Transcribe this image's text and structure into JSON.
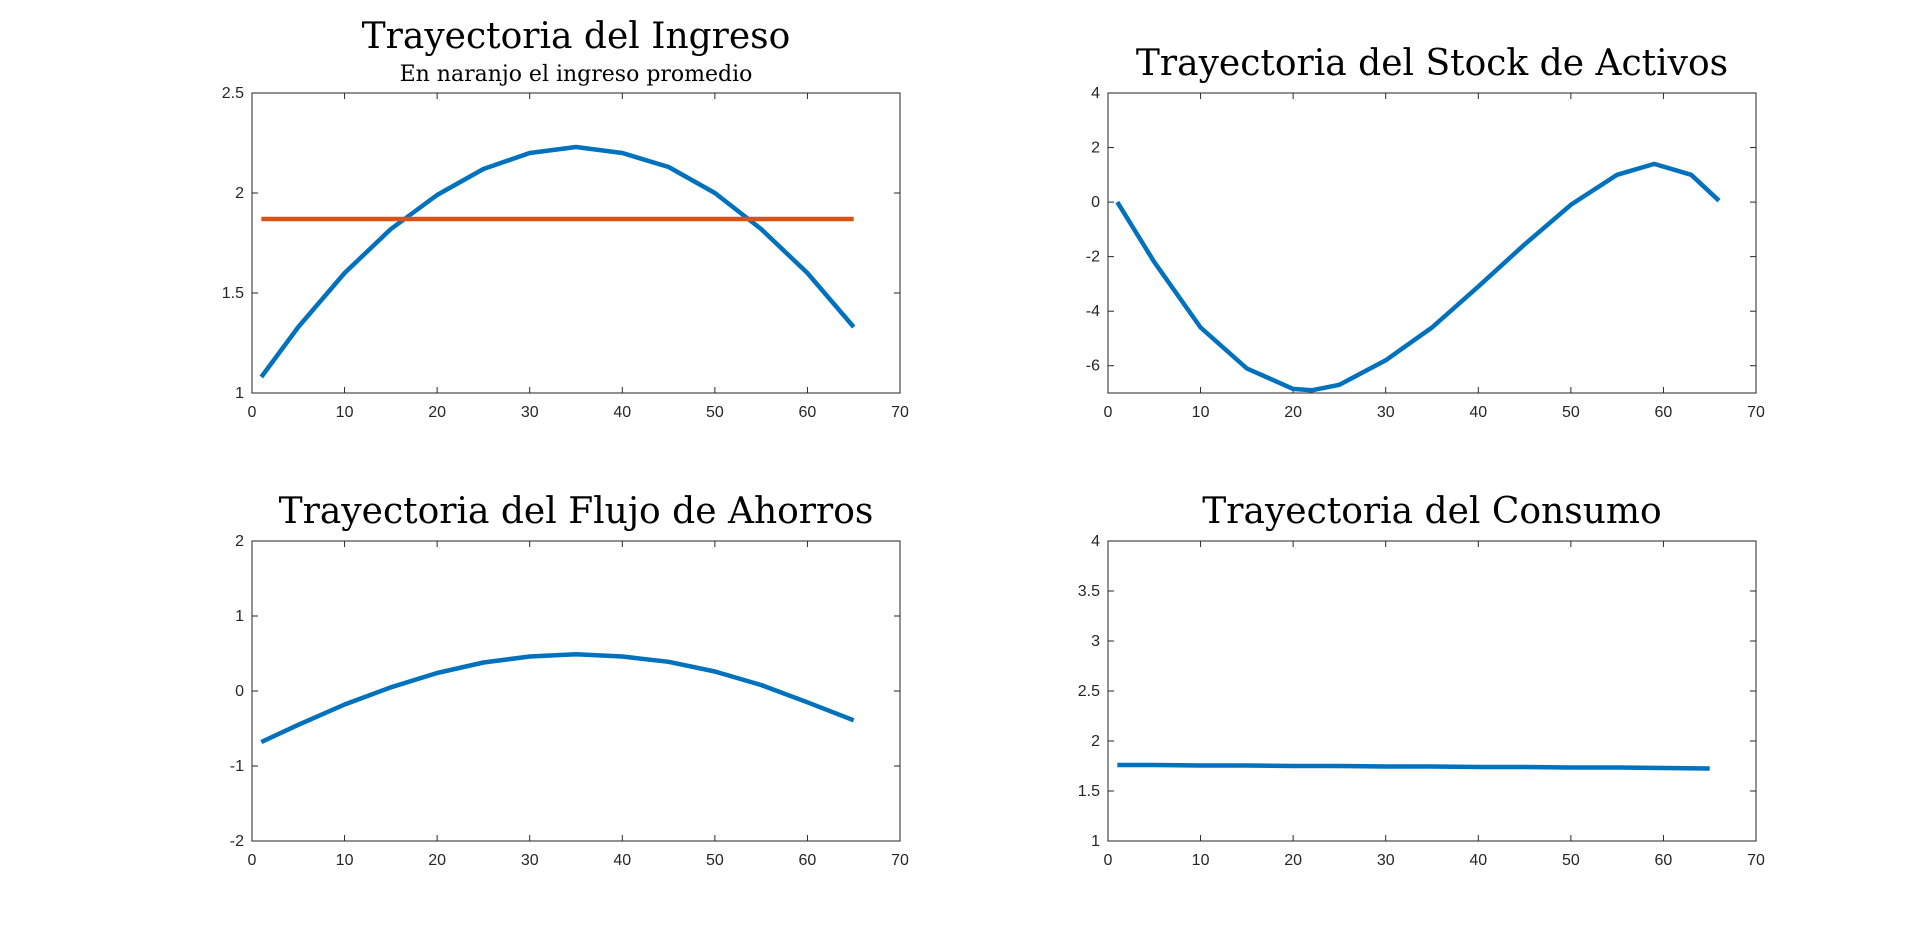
{
  "figure": {
    "background": "#ffffff",
    "axis_color": "#262626"
  },
  "chart_data": [
    {
      "id": "ingreso",
      "type": "line",
      "title": "Trayectoria del Ingreso",
      "subtitle": "En naranjo el ingreso promedio",
      "xlabel": "",
      "ylabel": "",
      "xlim": [
        0,
        70
      ],
      "ylim": [
        1,
        2.5
      ],
      "xticks": [
        0,
        10,
        20,
        30,
        40,
        50,
        60,
        70
      ],
      "yticks": [
        1,
        1.5,
        2,
        2.5
      ],
      "ytick_labels": [
        "1",
        "1.5",
        "2",
        "2.5"
      ],
      "grid": false,
      "series": [
        {
          "color": "#0072BD",
          "x": [
            1,
            5,
            10,
            15,
            20,
            25,
            30,
            35,
            40,
            45,
            50,
            55,
            60,
            65
          ],
          "y": [
            1.08,
            1.33,
            1.6,
            1.82,
            1.99,
            2.12,
            2.2,
            2.23,
            2.2,
            2.13,
            2.0,
            1.82,
            1.6,
            1.33
          ]
        },
        {
          "color": "#D95319",
          "x": [
            1,
            65
          ],
          "y": [
            1.87,
            1.87
          ]
        }
      ]
    },
    {
      "id": "stock",
      "type": "line",
      "title": "Trayectoria del Stock de Activos",
      "xlabel": "",
      "ylabel": "",
      "xlim": [
        0,
        70
      ],
      "ylim": [
        -7,
        4
      ],
      "xticks": [
        0,
        10,
        20,
        30,
        40,
        50,
        60,
        70
      ],
      "yticks": [
        -6,
        -4,
        -2,
        0,
        2,
        4
      ],
      "ytick_labels": [
        "-6",
        "-4",
        "-2",
        "0",
        "2",
        "4"
      ],
      "grid": false,
      "series": [
        {
          "color": "#0072BD",
          "x": [
            1,
            5,
            10,
            15,
            20,
            22,
            25,
            30,
            35,
            40,
            45,
            50,
            55,
            59,
            63,
            66
          ],
          "y": [
            0,
            -2.2,
            -4.6,
            -6.1,
            -6.85,
            -6.9,
            -6.7,
            -5.8,
            -4.6,
            -3.1,
            -1.55,
            -0.1,
            1.0,
            1.4,
            1.0,
            0.05
          ]
        }
      ]
    },
    {
      "id": "ahorros",
      "type": "line",
      "title": "Trayectoria del Flujo de Ahorros",
      "xlabel": "",
      "ylabel": "",
      "xlim": [
        0,
        70
      ],
      "ylim": [
        -2,
        2
      ],
      "xticks": [
        0,
        10,
        20,
        30,
        40,
        50,
        60,
        70
      ],
      "yticks": [
        -2,
        -1,
        0,
        1,
        2
      ],
      "ytick_labels": [
        "-2",
        "-1",
        "0",
        "1",
        "2"
      ],
      "grid": false,
      "series": [
        {
          "color": "#0072BD",
          "x": [
            1,
            5,
            10,
            15,
            20,
            25,
            30,
            35,
            40,
            45,
            50,
            55,
            60,
            65
          ],
          "y": [
            -0.68,
            -0.45,
            -0.18,
            0.05,
            0.24,
            0.38,
            0.46,
            0.49,
            0.46,
            0.39,
            0.26,
            0.08,
            -0.15,
            -0.39
          ]
        }
      ]
    },
    {
      "id": "consumo",
      "type": "line",
      "title": "Trayectoria del Consumo",
      "xlabel": "",
      "ylabel": "",
      "xlim": [
        0,
        70
      ],
      "ylim": [
        1,
        4
      ],
      "xticks": [
        0,
        10,
        20,
        30,
        40,
        50,
        60,
        70
      ],
      "yticks": [
        1,
        1.5,
        2,
        2.5,
        3,
        3.5,
        4
      ],
      "ytick_labels": [
        "1",
        "1.5",
        "2",
        "2.5",
        "3",
        "3.5",
        "4"
      ],
      "grid": false,
      "series": [
        {
          "color": "#0072BD",
          "x": [
            1,
            5,
            10,
            15,
            20,
            25,
            30,
            35,
            40,
            45,
            50,
            55,
            60,
            65
          ],
          "y": [
            1.76,
            1.76,
            1.755,
            1.755,
            1.75,
            1.75,
            1.745,
            1.745,
            1.74,
            1.74,
            1.735,
            1.735,
            1.73,
            1.725
          ]
        }
      ]
    }
  ]
}
